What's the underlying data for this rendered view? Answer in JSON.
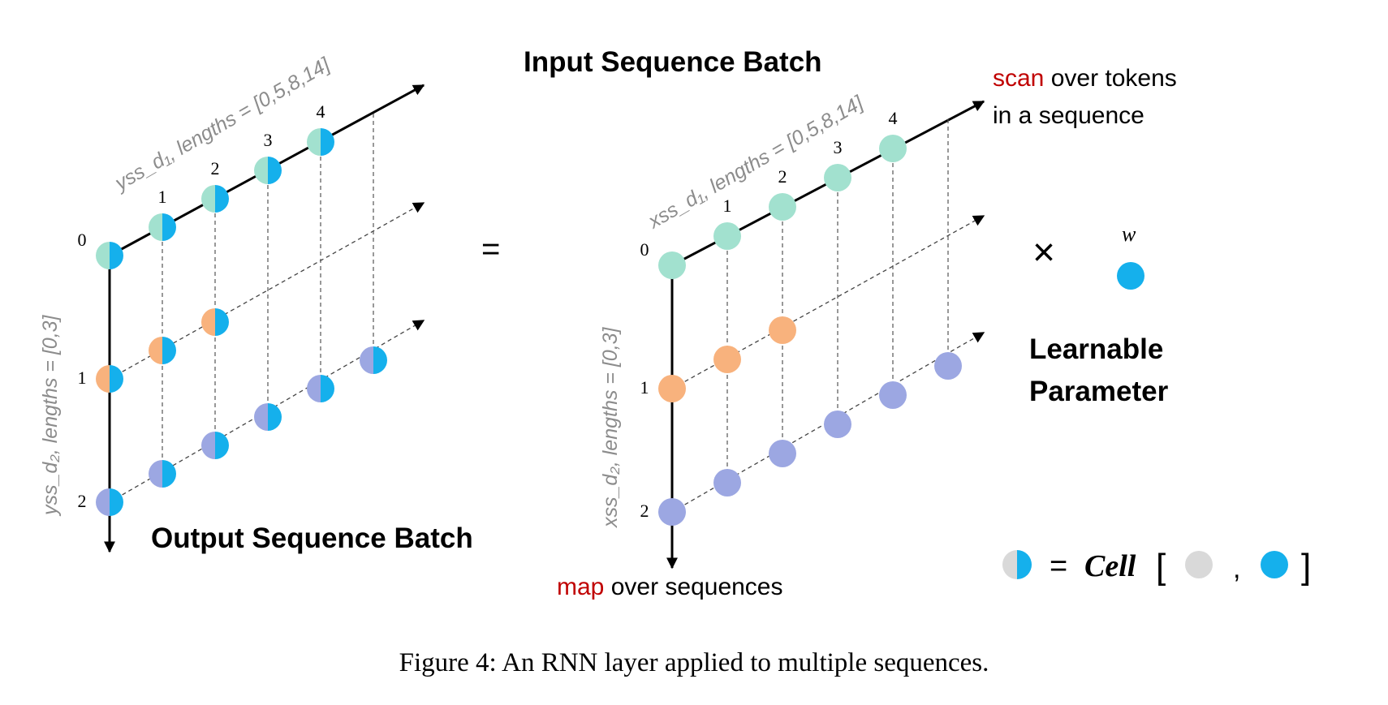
{
  "colors": {
    "teal": "#a2e1cf",
    "orange": "#f8b27d",
    "purple": "#9ca7e2",
    "blue": "#15b0ec",
    "gray": "#d9d9d9",
    "red_accent": "#c00000",
    "axis_label": "#8c8c8c"
  },
  "titles": {
    "input_batch": "Input Sequence Batch",
    "output_batch": "Output Sequence Batch",
    "learnable": [
      "Learnable",
      "Parameter"
    ]
  },
  "operators": {
    "equals": "=",
    "times": "×",
    "w": "w"
  },
  "annotations": {
    "scan_word": "scan",
    "scan_rest": " over tokens",
    "scan_line2": "in a sequence",
    "map_word": "map",
    "map_rest": " over sequences"
  },
  "axes": {
    "output_d1": "yss_d₁, lengths = [0,5,8,14]",
    "output_d2": "yss_d₂, lengths = [0,3]",
    "input_d1": "xss_d₁, lengths = [0,5,8,14]",
    "input_d2": "xss_d₂, lengths = [0,3]"
  },
  "token_indices": [
    "0",
    "1",
    "2",
    "3",
    "4"
  ],
  "sequence_indices": [
    "0",
    "1",
    "2"
  ],
  "sequences": [
    {
      "index": 0,
      "length": 5,
      "color": "teal"
    },
    {
      "index": 1,
      "length": 3,
      "color": "orange"
    },
    {
      "index": 2,
      "length": 6,
      "color": "purple"
    }
  ],
  "legend": {
    "equals": "=",
    "cell_word": "Cell",
    "open_bracket": "[",
    "comma": ",",
    "close_bracket": "]"
  },
  "caption": "Figure 4: An RNN layer applied to multiple sequences."
}
